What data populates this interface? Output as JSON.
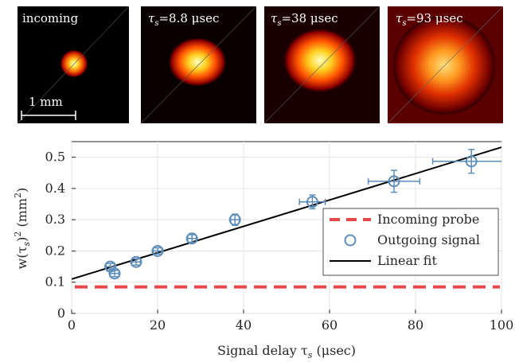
{
  "panels": [
    {
      "label": "incoming",
      "image": "beam-profile-heatmap",
      "spot_size": "small"
    },
    {
      "label_prefix": "τ",
      "label_sub": "s",
      "label_value": "=8.8 μsec",
      "image": "beam-profile-heatmap",
      "spot_size": "medium"
    },
    {
      "label_prefix": "τ",
      "label_sub": "s",
      "label_value": "=38 μsec",
      "image": "beam-profile-heatmap",
      "spot_size": "large"
    },
    {
      "label_prefix": "τ",
      "label_sub": "s",
      "label_value": "=93 μsec",
      "image": "beam-profile-heatmap",
      "spot_size": "diffuse"
    }
  ],
  "scale_bar": {
    "label": "1 mm"
  },
  "chart_data": {
    "type": "scatter",
    "xlabel_main": "Signal delay τ",
    "xlabel_sub": "s",
    "xlabel_unit": " (μsec)",
    "ylabel_main": "w(τ",
    "ylabel_sub": "s",
    "ylabel_rest": ")",
    "ylabel_sup": "2",
    "ylabel_unit": " (mm",
    "ylabel_unit_sup": "2",
    "ylabel_unit_close": ")",
    "xlim": [
      0,
      100
    ],
    "ylim": [
      0,
      0.55
    ],
    "xticks": [
      0,
      20,
      40,
      60,
      80,
      100
    ],
    "yticks": [
      0,
      0.1,
      0.2,
      0.3,
      0.4,
      0.5
    ],
    "grid": true,
    "legend_position": "bottom-right",
    "series": [
      {
        "name": "Incoming probe",
        "kind": "horizontal-dashed-line",
        "color": "#e8474c",
        "y": 0.085
      },
      {
        "name": "Outgoing signal",
        "kind": "markers-with-errorbars",
        "color": "#5b8db8",
        "points": [
          {
            "x": 9,
            "y": 0.15,
            "xerr": 1,
            "yerr": 0.01
          },
          {
            "x": 10,
            "y": 0.128,
            "xerr": 1,
            "yerr": 0.01
          },
          {
            "x": 15,
            "y": 0.165,
            "xerr": 1,
            "yerr": 0.01
          },
          {
            "x": 20,
            "y": 0.2,
            "xerr": 1,
            "yerr": 0.01
          },
          {
            "x": 28,
            "y": 0.24,
            "xerr": 1,
            "yerr": 0.012
          },
          {
            "x": 38,
            "y": 0.3,
            "xerr": 1,
            "yerr": 0.018
          },
          {
            "x": 56,
            "y": 0.357,
            "xerr": 3,
            "yerr": 0.022
          },
          {
            "x": 75,
            "y": 0.423,
            "xerr": 6,
            "yerr": 0.035
          },
          {
            "x": 93,
            "y": 0.487,
            "xerr": 9,
            "yerr": 0.038
          }
        ]
      },
      {
        "name": "Linear fit",
        "kind": "line",
        "color": "#000000",
        "x": [
          0,
          100
        ],
        "y": [
          0.11,
          0.532
        ]
      }
    ]
  }
}
